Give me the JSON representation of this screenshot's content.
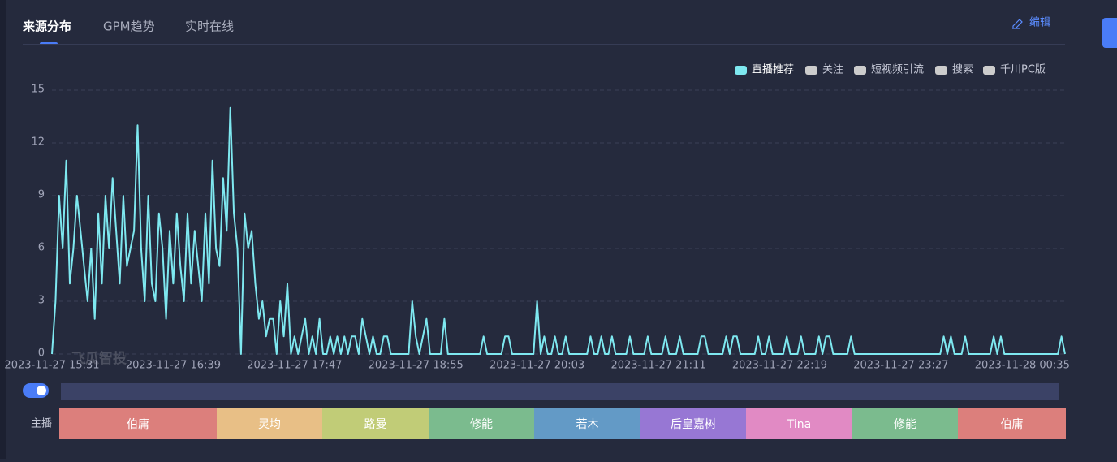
{
  "tabs": [
    "来源分布",
    "GPM趋势",
    "实时在线"
  ],
  "edit": "编辑",
  "watermark": "飞瓜智投",
  "chart_data": {
    "type": "line",
    "legend": [
      {
        "name": "直播推荐",
        "color": "#7ee8f0"
      },
      {
        "name": "关注",
        "color": "#cccccc"
      },
      {
        "name": "短视频引流",
        "color": "#cccccc"
      },
      {
        "name": "搜索",
        "color": "#cccccc"
      },
      {
        "name": "千川PC版",
        "color": "#cccccc"
      }
    ],
    "categories": [
      "2023-11-27 15:31",
      null,
      null,
      null,
      null,
      null,
      null,
      null,
      null,
      null,
      null,
      null,
      null,
      null,
      null,
      null,
      null,
      null,
      null,
      null,
      null,
      null,
      null,
      null,
      null,
      null,
      null,
      null,
      null,
      null,
      null,
      null,
      null,
      null,
      "2023-11-27 16:39",
      null,
      null,
      null,
      null,
      null,
      null,
      null,
      null,
      null,
      null,
      null,
      null,
      null,
      null,
      null,
      null,
      null,
      null,
      null,
      null,
      null,
      null,
      null,
      null,
      null,
      null,
      null,
      null,
      null,
      null,
      null,
      null,
      null,
      "2023-11-27 17:47",
      null,
      null,
      null,
      null,
      null,
      null,
      null,
      null,
      null,
      null,
      null,
      null,
      null,
      null,
      null,
      null,
      null,
      null,
      null,
      null,
      null,
      null,
      null,
      null,
      null,
      null,
      null,
      null,
      null,
      null,
      null,
      null,
      null,
      "2023-11-27 18:55",
      null,
      null,
      null,
      null,
      null,
      null,
      null,
      null,
      null,
      null,
      null,
      null,
      null,
      null,
      null,
      null,
      null,
      null,
      null,
      null,
      null,
      null,
      null,
      null,
      null,
      null,
      null,
      null,
      null,
      null,
      null,
      null,
      null,
      "2023-11-27 20:03",
      null,
      null,
      null,
      null,
      null,
      null,
      null,
      null,
      null,
      null,
      null,
      null,
      null,
      null,
      null,
      null,
      null,
      null,
      null,
      null,
      null,
      null,
      null,
      null,
      null,
      null,
      null,
      null,
      null,
      null,
      null,
      null,
      null,
      "2023-11-27 21:11",
      null,
      null,
      null,
      null,
      null,
      null,
      null,
      null,
      null,
      null,
      null,
      null,
      null,
      null,
      null,
      null,
      null,
      null,
      null,
      null,
      null,
      null,
      null,
      null,
      null,
      null,
      null,
      null,
      null,
      null,
      null,
      null,
      null,
      "2023-11-27 22:19",
      null,
      null,
      null,
      null,
      null,
      null,
      null,
      null,
      null,
      null,
      null,
      null,
      null,
      null,
      null,
      null,
      null,
      null,
      null,
      null,
      null,
      null,
      null,
      null,
      null,
      null,
      null,
      null,
      null,
      null,
      null,
      null,
      null,
      "2023-11-27 23:27",
      null,
      null,
      null,
      null,
      null,
      null,
      null,
      null,
      null,
      null,
      null,
      null,
      null,
      null,
      null,
      null,
      null,
      null,
      null,
      null,
      null,
      null,
      null,
      null,
      null,
      null,
      null,
      null,
      null,
      null,
      null,
      null,
      null,
      "2023-11-28 00:35",
      null,
      null,
      null,
      null,
      null,
      null,
      null,
      null,
      null,
      null,
      null,
      null
    ],
    "series": [
      {
        "name": "直播推荐",
        "color": "#7ee8f0",
        "values": [
          0,
          3,
          9,
          6,
          11,
          4,
          6,
          9,
          7,
          5,
          3,
          6,
          2,
          8,
          4,
          9,
          6,
          10,
          7,
          4,
          9,
          5,
          6,
          7,
          13,
          6,
          3,
          9,
          4,
          3,
          8,
          6,
          2,
          7,
          4,
          8,
          5,
          3,
          8,
          4,
          7,
          5,
          3,
          8,
          4,
          11,
          6,
          5,
          10,
          7,
          14,
          8,
          6,
          0,
          8,
          6,
          7,
          4,
          2,
          3,
          1,
          2,
          2,
          0,
          3,
          1,
          4,
          0,
          1,
          0,
          1,
          2,
          0,
          1,
          0,
          2,
          0,
          0,
          1,
          0,
          1,
          0,
          1,
          0,
          1,
          1,
          0,
          2,
          1,
          0,
          1,
          0,
          0,
          1,
          1,
          0,
          0,
          0,
          0,
          0,
          0,
          3,
          1,
          0,
          1,
          2,
          0,
          0,
          0,
          0,
          2,
          0,
          0,
          0,
          0,
          0,
          0,
          0,
          0,
          0,
          0,
          1,
          0,
          0,
          0,
          0,
          0,
          1,
          1,
          0,
          0,
          0,
          0,
          0,
          0,
          0,
          3,
          0,
          1,
          0,
          0,
          1,
          0,
          0,
          1,
          0,
          0,
          0,
          0,
          0,
          0,
          1,
          0,
          0,
          1,
          0,
          0,
          1,
          0,
          0,
          0,
          0,
          1,
          0,
          0,
          0,
          0,
          1,
          0,
          0,
          0,
          0,
          1,
          0,
          0,
          0,
          1,
          0,
          0,
          0,
          0,
          0,
          1,
          1,
          0,
          0,
          0,
          0,
          0,
          1,
          0,
          1,
          1,
          0,
          0,
          0,
          0,
          0,
          1,
          0,
          0,
          1,
          0,
          0,
          0,
          0,
          1,
          0,
          0,
          0,
          1,
          0,
          0,
          0,
          0,
          1,
          0,
          1,
          1,
          0,
          0,
          0,
          0,
          0,
          1,
          0,
          0,
          0,
          0,
          0,
          0,
          0,
          0,
          0,
          0,
          0,
          0,
          0,
          0,
          0,
          0,
          0,
          0,
          0,
          0,
          0,
          0,
          0,
          0,
          0,
          1,
          0,
          1,
          0,
          0,
          0,
          1,
          0,
          0,
          0,
          0,
          0,
          0,
          0,
          1,
          0,
          1,
          0,
          0,
          0,
          0,
          0,
          0,
          0,
          0,
          0,
          0,
          0,
          0,
          0,
          0,
          0,
          0,
          1,
          0
        ]
      }
    ],
    "ylim": [
      0,
      15
    ],
    "yticks": [
      0,
      3,
      6,
      9,
      12,
      15
    ],
    "grid": true
  },
  "anchors": {
    "label": "主播",
    "segments": [
      {
        "name": "伯庸",
        "color": "#dc7f7c"
      },
      {
        "name": "灵均",
        "color": "#e8bf86"
      },
      {
        "name": "路曼",
        "color": "#c1cc77"
      },
      {
        "name": "修能",
        "color": "#7bbb8e"
      },
      {
        "name": "若木",
        "color": "#639ac6"
      },
      {
        "name": "后皇嘉树",
        "color": "#9777d4"
      },
      {
        "name": "Tina",
        "color": "#e18ac4"
      },
      {
        "name": "修能",
        "color": "#7bbb8e"
      },
      {
        "name": "伯庸",
        "color": "#dc7f7c"
      }
    ]
  }
}
